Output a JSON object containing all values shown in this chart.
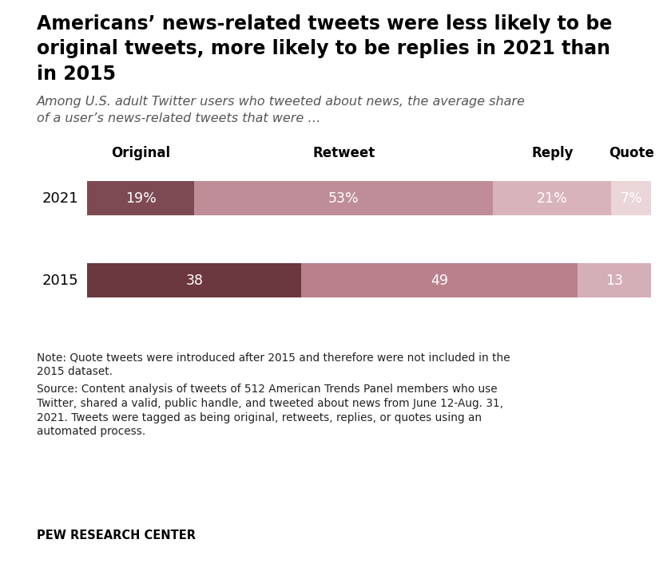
{
  "title_line1": "Americans’ news-related tweets were less likely to be",
  "title_line2": "original tweets, more likely to be replies in 2021 than",
  "title_line3": "in 2015",
  "subtitle_line1": "Among U.S. adult Twitter users who tweeted about news, the average share",
  "subtitle_line2": "of a user’s news-related tweets that were …",
  "col_headers": [
    "Original",
    "Retweet",
    "Reply",
    "Quote"
  ],
  "years": [
    "2021",
    "2015"
  ],
  "values_2021": [
    19,
    53,
    21,
    7
  ],
  "values_2015": [
    38,
    49,
    13
  ],
  "labels_2021": [
    "19%",
    "53%",
    "21%",
    "7%"
  ],
  "labels_2015": [
    "38",
    "49",
    "13"
  ],
  "colors_2021": [
    "#7d4a53",
    "#bf8d97",
    "#d9b3bb",
    "#ead5d9"
  ],
  "colors_2015": [
    "#6b3840",
    "#b8818b",
    "#d5afb7"
  ],
  "note_line1": "Note: Quote tweets were introduced after 2015 and therefore were not included in the",
  "note_line2": "2015 dataset.",
  "source_line1": "Source: Content analysis of tweets of 512 American Trends Panel members who use",
  "source_line2": "Twitter, shared a valid, public handle, and tweeted about news from June 12-Aug. 31,",
  "source_line3": "2021. Tweets were tagged as being original, retweets, replies, or quotes using an",
  "source_line4": "automated process.",
  "footer": "PEW RESEARCH CENTER",
  "background_color": "#ffffff"
}
